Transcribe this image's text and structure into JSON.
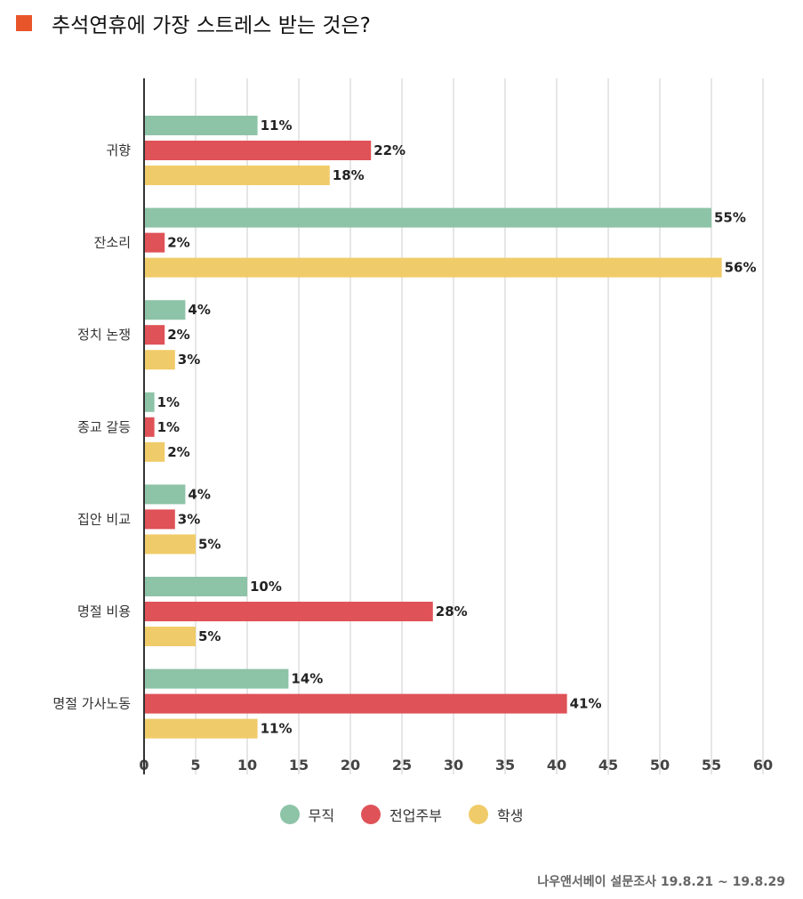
{
  "title": "추석연휴에 가장 스트레스 받는 것은?",
  "title_marker_color": "#E8552A",
  "source": "나우앤서베이 설문조사 19.8.21 ~ 19.8.29",
  "chart_data": {
    "type": "bar",
    "orientation": "horizontal",
    "categories": [
      "귀향",
      "잔소리",
      "정치 논쟁",
      "종교 갈등",
      "집안 비교",
      "명절 비용",
      "명절 가사노동"
    ],
    "series": [
      {
        "name": "무직",
        "color": "#8DC3A7",
        "values": [
          11,
          55,
          4,
          1,
          4,
          10,
          14
        ]
      },
      {
        "name": "전업주부",
        "color": "#DF5257",
        "values": [
          22,
          2,
          2,
          1,
          3,
          28,
          41
        ]
      },
      {
        "name": "학생",
        "color": "#F0CB69",
        "values": [
          18,
          56,
          3,
          2,
          5,
          5,
          11
        ]
      }
    ],
    "value_suffix": "%",
    "xlim": [
      0,
      60
    ],
    "xticks": [
      0,
      5,
      10,
      15,
      20,
      25,
      30,
      35,
      40,
      45,
      50,
      55,
      60
    ],
    "grid": true,
    "legend_position": "bottom"
  }
}
